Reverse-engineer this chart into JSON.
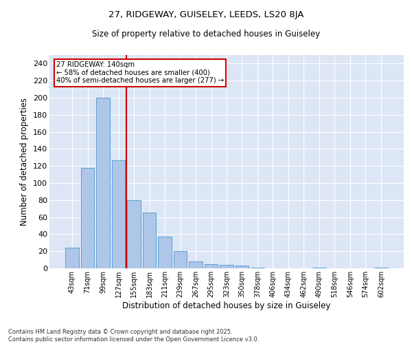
{
  "title1": "27, RIDGEWAY, GUISELEY, LEEDS, LS20 8JA",
  "title2": "Size of property relative to detached houses in Guiseley",
  "xlabel": "Distribution of detached houses by size in Guiseley",
  "ylabel": "Number of detached properties",
  "categories": [
    "43sqm",
    "71sqm",
    "99sqm",
    "127sqm",
    "155sqm",
    "183sqm",
    "211sqm",
    "239sqm",
    "267sqm",
    "295sqm",
    "323sqm",
    "350sqm",
    "378sqm",
    "406sqm",
    "434sqm",
    "462sqm",
    "490sqm",
    "518sqm",
    "546sqm",
    "574sqm",
    "602sqm"
  ],
  "values": [
    24,
    118,
    200,
    127,
    80,
    65,
    37,
    20,
    8,
    5,
    4,
    3,
    1,
    0,
    0,
    0,
    1,
    0,
    0,
    0,
    1
  ],
  "bar_color": "#aec6e8",
  "bar_edge_color": "#5a9fd4",
  "vline_color": "#cc0000",
  "annotation_text": "27 RIDGEWAY: 140sqm\n← 58% of detached houses are smaller (400)\n40% of semi-detached houses are larger (277) →",
  "annotation_box_edge": "#cc0000",
  "bg_color": "#dce6f5",
  "ylim": [
    0,
    250
  ],
  "yticks": [
    0,
    20,
    40,
    60,
    80,
    100,
    120,
    140,
    160,
    180,
    200,
    220,
    240
  ],
  "footnote1": "Contains HM Land Registry data © Crown copyright and database right 2025.",
  "footnote2": "Contains public sector information licensed under the Open Government Licence v3.0."
}
